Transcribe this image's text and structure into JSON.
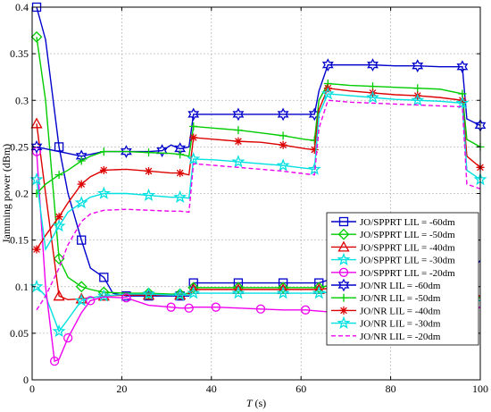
{
  "chart_data": {
    "type": "line",
    "title": "",
    "xlabel_italic": "T",
    "xlabel_rest": " (s)",
    "ylabel": "Jamming power (dBm)",
    "xlim": [
      0,
      100
    ],
    "ylim": [
      0,
      0.4
    ],
    "xticks": [
      0,
      20,
      40,
      60,
      80,
      100
    ],
    "yticks": [
      0,
      0.05,
      0.1,
      0.15,
      0.2,
      0.25,
      0.3,
      0.35,
      0.4
    ],
    "xtick_labels": [
      "0",
      "20",
      "40",
      "60",
      "80",
      "100"
    ],
    "ytick_labels": [
      "0",
      "0.05",
      "0.1",
      "0.15",
      "0.2",
      "0.25",
      "0.3",
      "0.35",
      "0.4"
    ],
    "grid": true,
    "legend_position": "right",
    "series": [
      {
        "name": "JO/SPPRT LIL = -60dm",
        "color": "#0000cc",
        "marker": "square",
        "dash": false,
        "x": [
          1,
          3,
          6,
          8,
          11,
          13,
          16,
          18,
          21,
          24,
          26,
          31,
          33,
          35,
          36,
          41,
          46,
          51,
          56,
          61,
          64,
          66,
          71,
          76,
          81,
          86,
          91,
          96,
          98,
          100
        ],
        "y": [
          0.4,
          0.365,
          0.25,
          0.2,
          0.15,
          0.12,
          0.11,
          0.093,
          0.09,
          0.09,
          0.09,
          0.09,
          0.09,
          0.09,
          0.104,
          0.104,
          0.104,
          0.104,
          0.104,
          0.104,
          0.104,
          0.107,
          0.107,
          0.108,
          0.108,
          0.109,
          0.11,
          0.112,
          0.118,
          0.128
        ]
      },
      {
        "name": "JO/SPPRT LIL = -50dm",
        "color": "#00cc00",
        "marker": "diamond",
        "dash": false,
        "x": [
          1,
          3,
          6,
          8,
          11,
          13,
          16,
          21,
          26,
          31,
          33,
          35,
          36,
          41,
          46,
          51,
          56,
          61,
          64,
          66,
          71,
          76,
          81,
          86,
          91,
          96,
          98,
          100
        ],
        "y": [
          0.368,
          0.3,
          0.13,
          0.11,
          0.1,
          0.097,
          0.094,
          0.093,
          0.093,
          0.092,
          0.092,
          0.093,
          0.099,
          0.099,
          0.099,
          0.099,
          0.099,
          0.099,
          0.099,
          0.101,
          0.101,
          0.101,
          0.1,
          0.1,
          0.098,
          0.092,
          0.09,
          0.088
        ]
      },
      {
        "name": "JO/SPPRT LIL = -40dm",
        "color": "#dd0000",
        "marker": "triangle",
        "dash": false,
        "x": [
          1,
          3,
          6,
          8,
          11,
          13,
          16,
          21,
          26,
          31,
          33,
          35,
          36,
          41,
          46,
          51,
          56,
          61,
          64,
          66,
          71,
          76,
          81,
          86,
          91,
          96,
          98,
          100
        ],
        "y": [
          0.275,
          0.2,
          0.09,
          0.086,
          0.087,
          0.088,
          0.09,
          0.091,
          0.091,
          0.091,
          0.091,
          0.091,
          0.097,
          0.097,
          0.097,
          0.097,
          0.097,
          0.097,
          0.097,
          0.098,
          0.098,
          0.097,
          0.097,
          0.096,
          0.095,
          0.092,
          0.091,
          0.09
        ]
      },
      {
        "name": "JO/SPPRT LIL = -30dm",
        "color": "#00e0e0",
        "marker": "star",
        "dash": false,
        "x": [
          1,
          3,
          6,
          8,
          11,
          13,
          16,
          21,
          26,
          31,
          33,
          35,
          36,
          41,
          46,
          51,
          56,
          61,
          64,
          66,
          71,
          76,
          81,
          86,
          91,
          96,
          98,
          100
        ],
        "y": [
          0.1,
          0.09,
          0.052,
          0.065,
          0.085,
          0.088,
          0.09,
          0.092,
          0.092,
          0.091,
          0.091,
          0.091,
          0.093,
          0.093,
          0.093,
          0.093,
          0.093,
          0.093,
          0.093,
          0.094,
          0.094,
          0.093,
          0.092,
          0.091,
          0.09,
          0.088,
          0.086,
          0.085
        ]
      },
      {
        "name": "JO/SPPRT LIL = -20dm",
        "color": "#ee00ee",
        "marker": "circle",
        "dash": false,
        "x": [
          1,
          3,
          5,
          6,
          8,
          11,
          13,
          16,
          21,
          26,
          31,
          33,
          35,
          36,
          41,
          46,
          51,
          56,
          61,
          66,
          71,
          76,
          81,
          86,
          91,
          96,
          98,
          100
        ],
        "y": [
          0.245,
          0.1,
          0.02,
          0.022,
          0.045,
          0.072,
          0.085,
          0.089,
          0.088,
          0.08,
          0.078,
          0.077,
          0.077,
          0.078,
          0.078,
          0.077,
          0.076,
          0.075,
          0.075,
          0.073,
          0.072,
          0.072,
          0.071,
          0.071,
          0.072,
          0.073,
          0.075,
          0.078
        ]
      },
      {
        "name": "JO/NR LIL = -60dm",
        "color": "#0000cc",
        "marker": "hexagram",
        "dash": false,
        "x": [
          1,
          6,
          11,
          16,
          21,
          26,
          29,
          31,
          33,
          35,
          36,
          41,
          46,
          51,
          56,
          61,
          63,
          64,
          66,
          71,
          76,
          81,
          86,
          91,
          96,
          97,
          100
        ],
        "y": [
          0.25,
          0.245,
          0.24,
          0.245,
          0.245,
          0.245,
          0.246,
          0.252,
          0.248,
          0.25,
          0.285,
          0.285,
          0.285,
          0.285,
          0.285,
          0.285,
          0.285,
          0.31,
          0.338,
          0.338,
          0.338,
          0.337,
          0.337,
          0.336,
          0.336,
          0.28,
          0.273
        ]
      },
      {
        "name": "JO/NR LIL = -50dm",
        "color": "#00cc00",
        "marker": "plus",
        "dash": false,
        "x": [
          1,
          3,
          6,
          8,
          11,
          13,
          16,
          21,
          26,
          31,
          33,
          35,
          36,
          41,
          46,
          51,
          56,
          61,
          63,
          64,
          66,
          71,
          76,
          81,
          86,
          91,
          96,
          97,
          100
        ],
        "y": [
          0.2,
          0.21,
          0.22,
          0.225,
          0.235,
          0.24,
          0.245,
          0.245,
          0.244,
          0.243,
          0.242,
          0.24,
          0.272,
          0.27,
          0.268,
          0.265,
          0.262,
          0.258,
          0.257,
          0.3,
          0.318,
          0.316,
          0.315,
          0.314,
          0.313,
          0.312,
          0.307,
          0.258,
          0.25
        ]
      },
      {
        "name": "JO/NR LIL = -40dm",
        "color": "#dd0000",
        "marker": "asterisk",
        "dash": false,
        "x": [
          1,
          3,
          6,
          8,
          11,
          13,
          16,
          21,
          26,
          31,
          33,
          35,
          36,
          41,
          46,
          51,
          56,
          61,
          63,
          64,
          66,
          71,
          76,
          81,
          86,
          91,
          96,
          97,
          100
        ],
        "y": [
          0.14,
          0.155,
          0.175,
          0.19,
          0.21,
          0.218,
          0.225,
          0.226,
          0.224,
          0.222,
          0.222,
          0.22,
          0.26,
          0.258,
          0.256,
          0.255,
          0.252,
          0.248,
          0.247,
          0.29,
          0.313,
          0.31,
          0.308,
          0.306,
          0.305,
          0.303,
          0.3,
          0.24,
          0.228
        ]
      },
      {
        "name": "JO/NR LIL = -30dm",
        "color": "#00e0e0",
        "marker": "star",
        "dash": false,
        "x": [
          1,
          3,
          6,
          8,
          11,
          13,
          16,
          21,
          26,
          31,
          33,
          35,
          36,
          41,
          46,
          51,
          56,
          61,
          63,
          64,
          66,
          71,
          76,
          81,
          86,
          91,
          96,
          97,
          100
        ],
        "y": [
          0.215,
          0.14,
          0.165,
          0.18,
          0.19,
          0.196,
          0.2,
          0.2,
          0.198,
          0.196,
          0.196,
          0.195,
          0.237,
          0.236,
          0.234,
          0.232,
          0.23,
          0.227,
          0.226,
          0.285,
          0.307,
          0.305,
          0.303,
          0.301,
          0.3,
          0.299,
          0.297,
          0.225,
          0.215
        ]
      },
      {
        "name": "JO/NR LIL = -20dm",
        "color": "#ee00ee",
        "marker": "none",
        "dash": true,
        "x": [
          1,
          3,
          6,
          8,
          11,
          13,
          16,
          21,
          26,
          31,
          33,
          35,
          36,
          41,
          46,
          51,
          56,
          61,
          63,
          64,
          66,
          71,
          76,
          81,
          86,
          91,
          96,
          97,
          100
        ],
        "y": [
          0.075,
          0.09,
          0.12,
          0.145,
          0.17,
          0.178,
          0.182,
          0.183,
          0.182,
          0.181,
          0.181,
          0.18,
          0.232,
          0.23,
          0.228,
          0.226,
          0.224,
          0.221,
          0.22,
          0.27,
          0.3,
          0.298,
          0.297,
          0.296,
          0.295,
          0.294,
          0.293,
          0.21,
          0.205
        ]
      }
    ]
  }
}
